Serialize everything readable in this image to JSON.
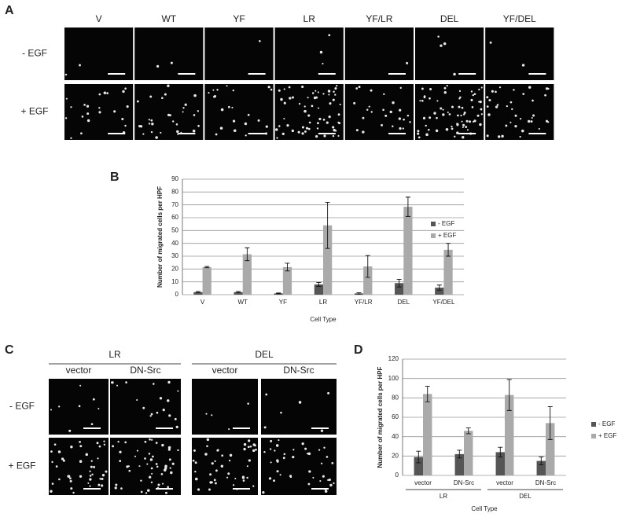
{
  "panels": {
    "A": {
      "label": "A",
      "columns": [
        "V",
        "WT",
        "YF",
        "LR",
        "YF/LR",
        "DEL",
        "YF/DEL"
      ],
      "rows": [
        "- EGF",
        "+ EGF"
      ]
    },
    "C": {
      "label": "C",
      "groups": [
        "LR",
        "DEL"
      ],
      "columns": [
        "vector",
        "DN-Src",
        "vector",
        "DN-Src"
      ],
      "rows": [
        "- EGF",
        "+ EGF"
      ]
    }
  },
  "chart_data": [
    {
      "type": "bar",
      "panel_label": "B",
      "y_label": "Number of migrated cells per HPF",
      "x_label": "Cell Type",
      "categories": [
        "V",
        "WT",
        "YF",
        "LR",
        "YF/LR",
        "DEL",
        "YF/DEL"
      ],
      "series": [
        {
          "name": "- EGF",
          "color": "#555555",
          "values": [
            2,
            2,
            1,
            8,
            1,
            9,
            5.5
          ],
          "errors": [
            0.5,
            0.5,
            0.3,
            1.5,
            0.5,
            3,
            2
          ]
        },
        {
          "name": "+ EGF",
          "color": "#aaaaaa",
          "values": [
            21.5,
            31.5,
            21.5,
            54,
            22,
            68.5,
            35
          ],
          "errors": [
            0.5,
            5,
            3,
            18,
            8.5,
            7.5,
            5
          ]
        }
      ],
      "ylim": [
        0,
        90
      ],
      "yticks": [
        0,
        10,
        20,
        30,
        40,
        50,
        60,
        70,
        80,
        90
      ],
      "grid": true
    },
    {
      "type": "bar",
      "panel_label": "D",
      "y_label": "Number of migrated cells per HPF",
      "x_label": "Cell Type",
      "categories": [
        "vector",
        "DN-Src",
        "vector",
        "DN-Src"
      ],
      "group_labels": [
        "LR",
        "DEL"
      ],
      "series": [
        {
          "name": "- EGF",
          "color": "#555555",
          "values": [
            19,
            22,
            24,
            15
          ],
          "errors": [
            6,
            4,
            5,
            4
          ]
        },
        {
          "name": "+ EGF",
          "color": "#aaaaaa",
          "values": [
            84,
            46,
            83,
            54
          ],
          "errors": [
            8,
            3,
            16,
            17
          ]
        }
      ],
      "ylim": [
        0,
        120
      ],
      "yticks": [
        0,
        20,
        40,
        60,
        80,
        100,
        120
      ],
      "grid": true
    }
  ]
}
